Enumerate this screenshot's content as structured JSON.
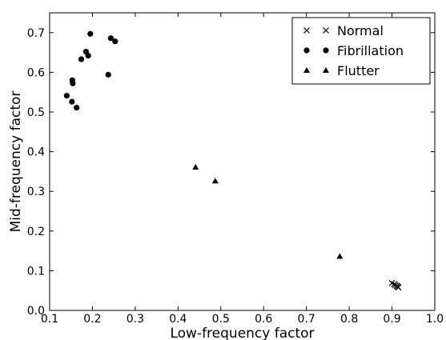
{
  "chart_data": {
    "type": "scatter",
    "xlabel": "Low-frequency factor",
    "ylabel": "Mid-frequency factor",
    "xlim": [
      0.1,
      1.0
    ],
    "ylim": [
      0.0,
      0.75
    ],
    "xticks": [
      "0.1",
      "0.2",
      "0.3",
      "0.4",
      "0.5",
      "0.6",
      "0.7",
      "0.8",
      "0.9",
      "1.0"
    ],
    "yticks": [
      "0.0",
      "0.1",
      "0.2",
      "0.3",
      "0.4",
      "0.5",
      "0.6",
      "0.7"
    ],
    "grid": false,
    "legend_position": "top-right",
    "series": [
      {
        "name": "Normal",
        "marker": "x",
        "points": [
          [
            0.9,
            0.069
          ],
          [
            0.905,
            0.066
          ],
          [
            0.908,
            0.064
          ],
          [
            0.911,
            0.062
          ],
          [
            0.913,
            0.06
          ],
          [
            0.915,
            0.058
          ]
        ]
      },
      {
        "name": "Fibrillation",
        "marker": "circle",
        "points": [
          [
            0.195,
            0.697
          ],
          [
            0.243,
            0.686
          ],
          [
            0.253,
            0.678
          ],
          [
            0.185,
            0.652
          ],
          [
            0.19,
            0.642
          ],
          [
            0.174,
            0.633
          ],
          [
            0.237,
            0.594
          ],
          [
            0.153,
            0.58
          ],
          [
            0.154,
            0.572
          ],
          [
            0.14,
            0.541
          ],
          [
            0.152,
            0.526
          ],
          [
            0.163,
            0.511
          ]
        ]
      },
      {
        "name": "Flutter",
        "marker": "triangle",
        "points": [
          [
            0.441,
            0.361
          ],
          [
            0.487,
            0.326
          ],
          [
            0.778,
            0.136
          ]
        ]
      }
    ]
  }
}
